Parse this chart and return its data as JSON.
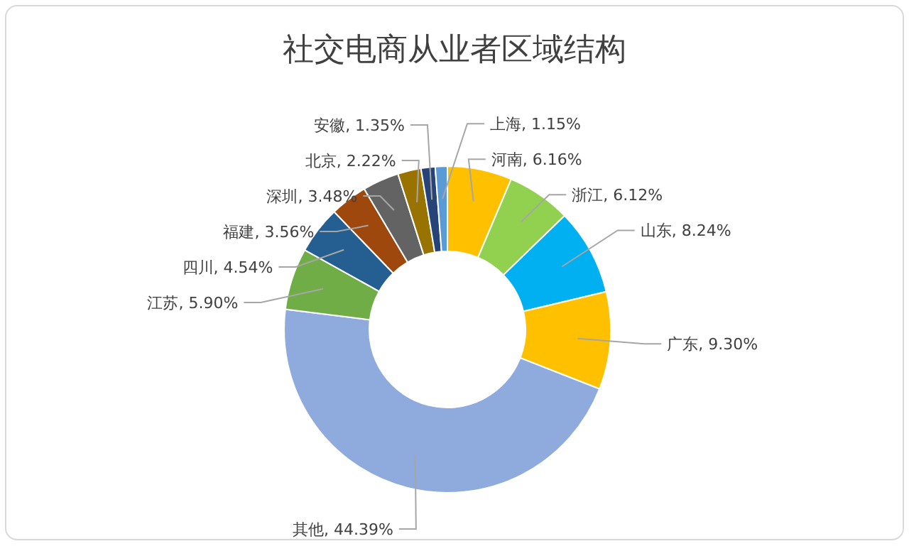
{
  "chart_data": {
    "type": "donut",
    "title": "社交电商从业者区域结构",
    "categories": [
      "河南",
      "浙江",
      "山东",
      "广东",
      "其他",
      "江苏",
      "四川",
      "福建",
      "深圳",
      "北京",
      "安徽",
      "上海"
    ],
    "values": [
      6.16,
      6.12,
      8.24,
      9.3,
      44.39,
      5.9,
      4.54,
      3.56,
      3.48,
      2.22,
      1.35,
      1.15
    ],
    "value_labels": [
      "6.16%",
      "6.12%",
      "8.24%",
      "9.30%",
      "44.39%",
      "5.90%",
      "4.54%",
      "3.56%",
      "3.48%",
      "2.22%",
      "1.35%",
      "1.15%"
    ],
    "colors": [
      "#ffc000",
      "#92d050",
      "#00b0f0",
      "#ffc000",
      "#8faadc",
      "#70ad47",
      "#255e91",
      "#9e480e",
      "#636363",
      "#997300",
      "#264478",
      "#5b9bd5"
    ]
  }
}
